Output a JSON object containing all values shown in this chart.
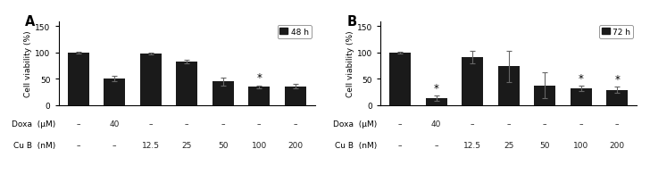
{
  "panel_A": {
    "label": "A",
    "legend_label": "48 h",
    "ylabel": "Cell viability (%)",
    "ylim": [
      0,
      160
    ],
    "yticks": [
      0,
      50,
      100,
      150
    ],
    "bar_values": [
      100,
      50,
      98,
      83,
      45,
      35,
      36
    ],
    "bar_errors": [
      1,
      5,
      2,
      3,
      8,
      3,
      4
    ],
    "bar_color": "#1a1a1a",
    "asterisks": [
      false,
      false,
      false,
      false,
      false,
      true,
      false
    ],
    "x_labels_doxa": [
      "–",
      "40",
      "–",
      "–",
      "–",
      "–",
      "–"
    ],
    "x_labels_cub": [
      "–",
      "–",
      "12.5",
      "25",
      "50",
      "100",
      "200"
    ]
  },
  "panel_B": {
    "label": "B",
    "legend_label": "72 h",
    "ylabel": "Cell viability (%)",
    "ylim": [
      0,
      160
    ],
    "yticks": [
      0,
      50,
      100,
      150
    ],
    "bar_values": [
      100,
      13,
      92,
      74,
      38,
      32,
      29
    ],
    "bar_errors": [
      2,
      5,
      12,
      30,
      25,
      5,
      6
    ],
    "bar_color": "#1a1a1a",
    "asterisks": [
      false,
      true,
      false,
      false,
      false,
      true,
      true
    ],
    "x_labels_doxa": [
      "–",
      "40",
      "–",
      "–",
      "–",
      "–",
      "–"
    ],
    "x_labels_cub": [
      "–",
      "–",
      "12.5",
      "25",
      "50",
      "100",
      "200"
    ]
  },
  "doxa_row_label": "Doxa  (μM)",
  "cub_row_label": "Cu B  (nM)",
  "background_color": "#ffffff",
  "bar_width": 0.6,
  "font_size": 6.5
}
